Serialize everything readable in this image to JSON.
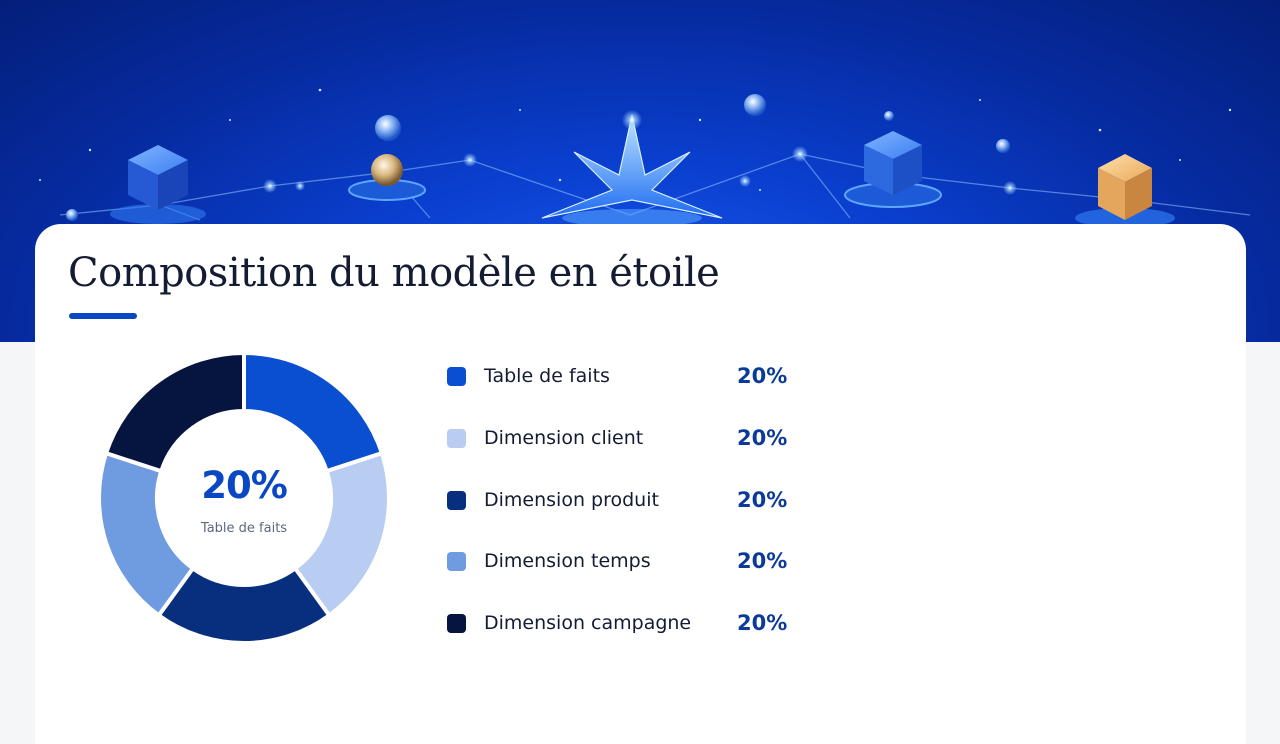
{
  "slide": {
    "title": "Composition du modèle en étoile"
  },
  "colors": {
    "accent": "#0a47c4",
    "title_text": "#141c33",
    "value_text": "#0b3a99",
    "banner_blue": "#0a3fcf"
  },
  "center": {
    "value": "20%",
    "label": "Table de faits"
  },
  "legend": [
    {
      "label": "Table de faits",
      "value": "20%",
      "color": "#0a4fd0"
    },
    {
      "label": "Dimension client",
      "value": "20%",
      "color": "#b8cdf1"
    },
    {
      "label": "Dimension produit",
      "value": "20%",
      "color": "#082f7e"
    },
    {
      "label": "Dimension temps",
      "value": "20%",
      "color": "#6f9be0"
    },
    {
      "label": "Dimension campagne",
      "value": "20%",
      "color": "#06153f"
    }
  ],
  "chart_data": {
    "type": "pie",
    "donut": true,
    "categories": [
      "Table de faits",
      "Dimension client",
      "Dimension produit",
      "Dimension temps",
      "Dimension campagne"
    ],
    "values": [
      20,
      20,
      20,
      20,
      20
    ],
    "colors": [
      "#0a4fd0",
      "#b8cdf1",
      "#082f7e",
      "#6f9be0",
      "#06153f"
    ],
    "title": "Composition du modèle en étoile",
    "legend_position": "right"
  }
}
